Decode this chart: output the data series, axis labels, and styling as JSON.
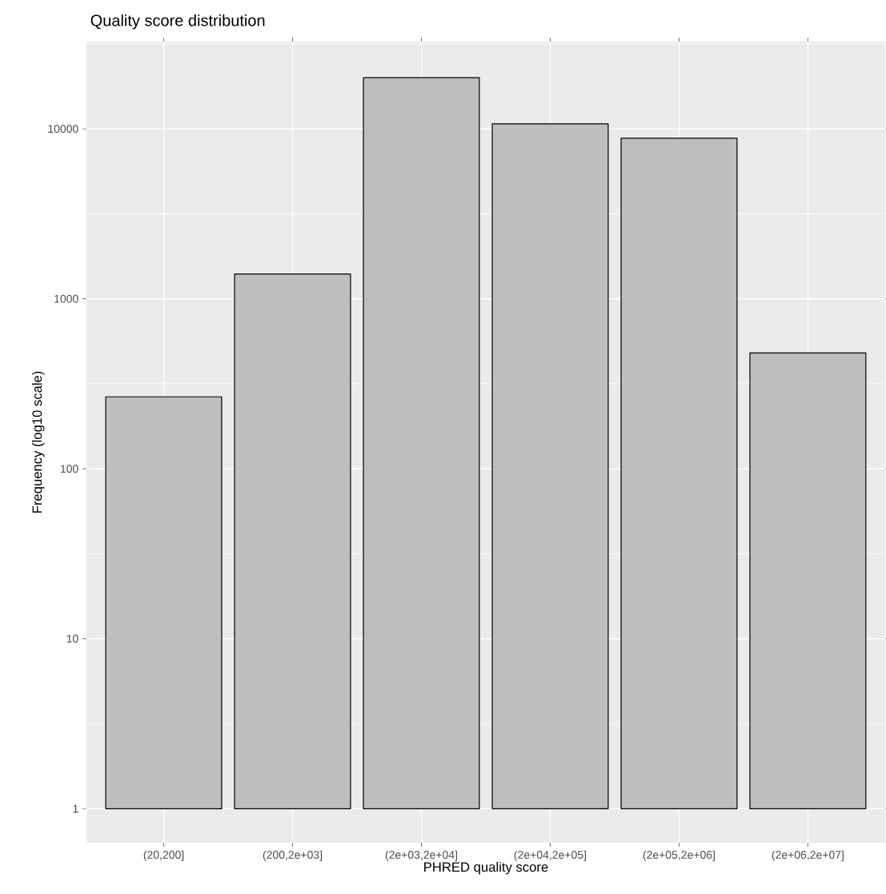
{
  "chart_data": {
    "type": "bar",
    "title": "Quality score distribution",
    "xlabel": "PHRED quality score",
    "ylabel": "Frequency (log10 scale)",
    "categories": [
      "(20,200]",
      "(200,2e+03]",
      "(2e+03,2e+04]",
      "(2e+04,2e+05]",
      "(2e+05,2e+06]",
      "(2e+06,2e+07]"
    ],
    "values": [
      264,
      1399,
      19999,
      10699,
      8799,
      479
    ],
    "base": [
      1,
      1,
      1,
      1,
      1,
      1
    ],
    "color": "#bebebe",
    "log": true,
    "ylim": [
      0.63,
      32600
    ],
    "yticks": [
      1,
      10,
      100,
      1000,
      10000
    ],
    "grid": true
  }
}
